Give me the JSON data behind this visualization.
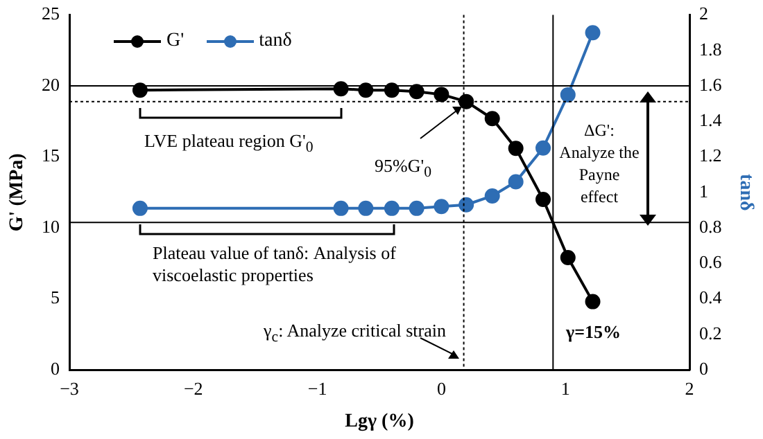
{
  "chart_data": {
    "type": "line",
    "xlabel": "Lgγ (%)",
    "ylabel": "G' (MPa)",
    "y2label": "tanδ",
    "series": [
      {
        "name": "G'",
        "color": "#000000",
        "x": [
          -2.43,
          -0.81,
          -0.61,
          -0.4,
          -0.2,
          0.0,
          0.2,
          0.41,
          0.6,
          0.82,
          1.02,
          1.22
        ],
        "values": [
          19.7,
          19.8,
          19.7,
          19.7,
          19.6,
          19.4,
          18.9,
          17.7,
          15.6,
          12.0,
          7.9,
          4.8
        ]
      },
      {
        "name": "tanδ",
        "color": "#2e6db4",
        "axis": "y2",
        "x": [
          -2.43,
          -0.81,
          -0.61,
          -0.4,
          -0.2,
          0.0,
          0.2,
          0.41,
          0.6,
          0.82,
          1.02,
          1.22
        ],
        "values": [
          0.91,
          0.91,
          0.91,
          0.91,
          0.91,
          0.92,
          0.93,
          0.98,
          1.06,
          1.25,
          1.55,
          1.9
        ]
      }
    ],
    "xlim": [
      -3,
      2
    ],
    "xticks": [
      {
        "value": -3,
        "label": "−3"
      },
      {
        "value": -2,
        "label": "−2"
      },
      {
        "value": -1,
        "label": "−1"
      },
      0,
      1,
      2
    ],
    "ylim": [
      0,
      25
    ],
    "yticks": [
      0,
      5,
      10,
      15,
      20,
      25
    ],
    "y2lim": [
      0,
      2
    ],
    "y2ticks": [
      0,
      0.2,
      0.4,
      0.6,
      0.8,
      1,
      1.2,
      1.4,
      1.6,
      1.8,
      2
    ],
    "ref_lines": [
      {
        "axis": "x",
        "value": 0.18,
        "line_style": "dotted"
      },
      {
        "axis": "x",
        "value": 0.9,
        "line_style": "solid"
      },
      {
        "axis": "y",
        "value": 20,
        "line_style": "solid"
      },
      {
        "axis": "y",
        "value": 18.9,
        "line_style": "dotted"
      },
      {
        "axis": "y2",
        "value": 0.83,
        "line_style": "solid"
      }
    ],
    "annotations": [
      "LVE plateau region  G'$_{0}$",
      "95%G'$_{0}$",
      "ΔG': Analyze the Payne effect",
      "Plateau value of tanδ: Analysis of viscoelastic properties",
      "γ$_{c}$: Analyze critical strain",
      "γ=15%"
    ],
    "legend": "top left",
    "marker": "circle",
    "line_style": "solid",
    "grid": false
  }
}
